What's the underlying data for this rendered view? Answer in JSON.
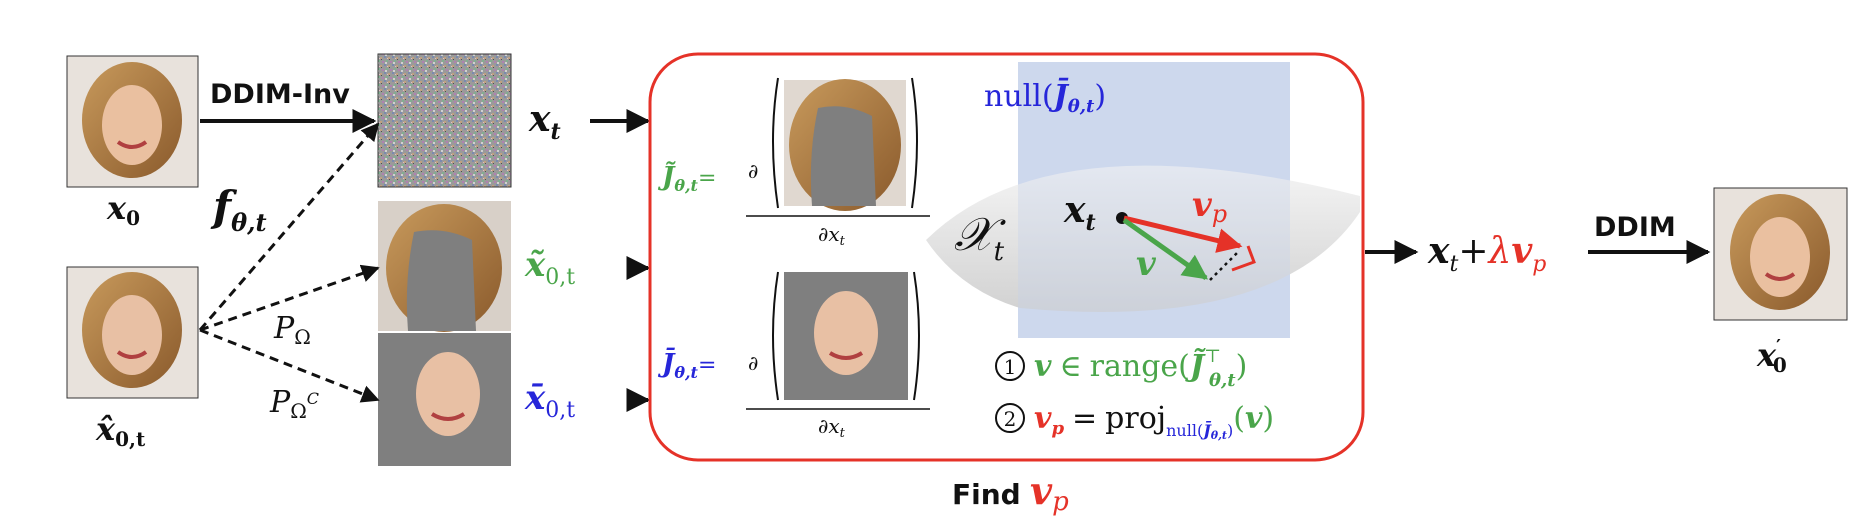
{
  "colors": {
    "green": "#4aa54a",
    "blue": "#2626d9",
    "red": "#e53228",
    "black": "#111111",
    "plane": "#c8d4ec",
    "mask_gray": "#7f7f7f"
  },
  "images": {
    "x0": "face",
    "xt": "noise",
    "x0t_hat": "face",
    "x0t_tilde": "masked-face",
    "x0t_bar": "masked-hair",
    "x0_prime": "face"
  },
  "labels": {
    "ddim_inv": "DDIM-Inv",
    "ddim": "DDIM",
    "find": "Find",
    "x0_base": "x",
    "x0_sub": "0",
    "x0t_hat_base": "x̂",
    "x0t_hat_sub": "0,t",
    "f_base": "f",
    "f_sub": "θ,t",
    "p_omega": "P",
    "p_omega_sub": "Ω",
    "p_omega_c": "P",
    "p_omega_c_sub": "Ω",
    "p_omega_c_sup": "C",
    "xt_base": "x",
    "xt_sub": "t",
    "x0t_tilde_base": "x̃",
    "x0t_tilde_sub": "0,t",
    "x0t_bar_base": "x̄",
    "x0t_bar_sub": "0,t",
    "out_x": "x",
    "out_t": "t",
    "out_plus": "+",
    "out_lambda": "λ",
    "out_v": "v",
    "out_p": "p",
    "xprime_base": "x",
    "xprime_sub": "0",
    "xprime_sup": "′"
  },
  "box": {
    "jt_tilde_base": "J̃",
    "jt_tilde_sub": "θ,t",
    "eq": "=",
    "jt_bar_base": "J̄",
    "jt_bar_sub": "θ,t",
    "partial": "∂",
    "dxt": "∂x",
    "dxt_sub": "t",
    "null_label": "null(",
    "null_j": "J̄",
    "null_sub": "θ,t",
    "null_close": ")",
    "manifold": "𝒳",
    "manifold_sub": "t",
    "pt_x": "x",
    "pt_t": "t",
    "vec_vp": "v",
    "vec_vp_sub": "p",
    "vec_v": "v",
    "step1_num": "1",
    "step1_v": "v",
    "step1_in": "∈",
    "step1_range": "range(",
    "step1_j": "J̃",
    "step1_sup": "⊤",
    "step1_sub": "θ,t",
    "step1_close": ")",
    "step2_num": "2",
    "step2_v": "v",
    "step2_sub": "p",
    "step2_eq": "=",
    "step2_proj": "proj",
    "step2_null": "null(",
    "step2_j": "J̄",
    "step2_jsub": "θ,t",
    "step2_nclose": ")",
    "step2_arg_open": "(",
    "step2_arg_v": "v",
    "step2_arg_close": ")"
  }
}
